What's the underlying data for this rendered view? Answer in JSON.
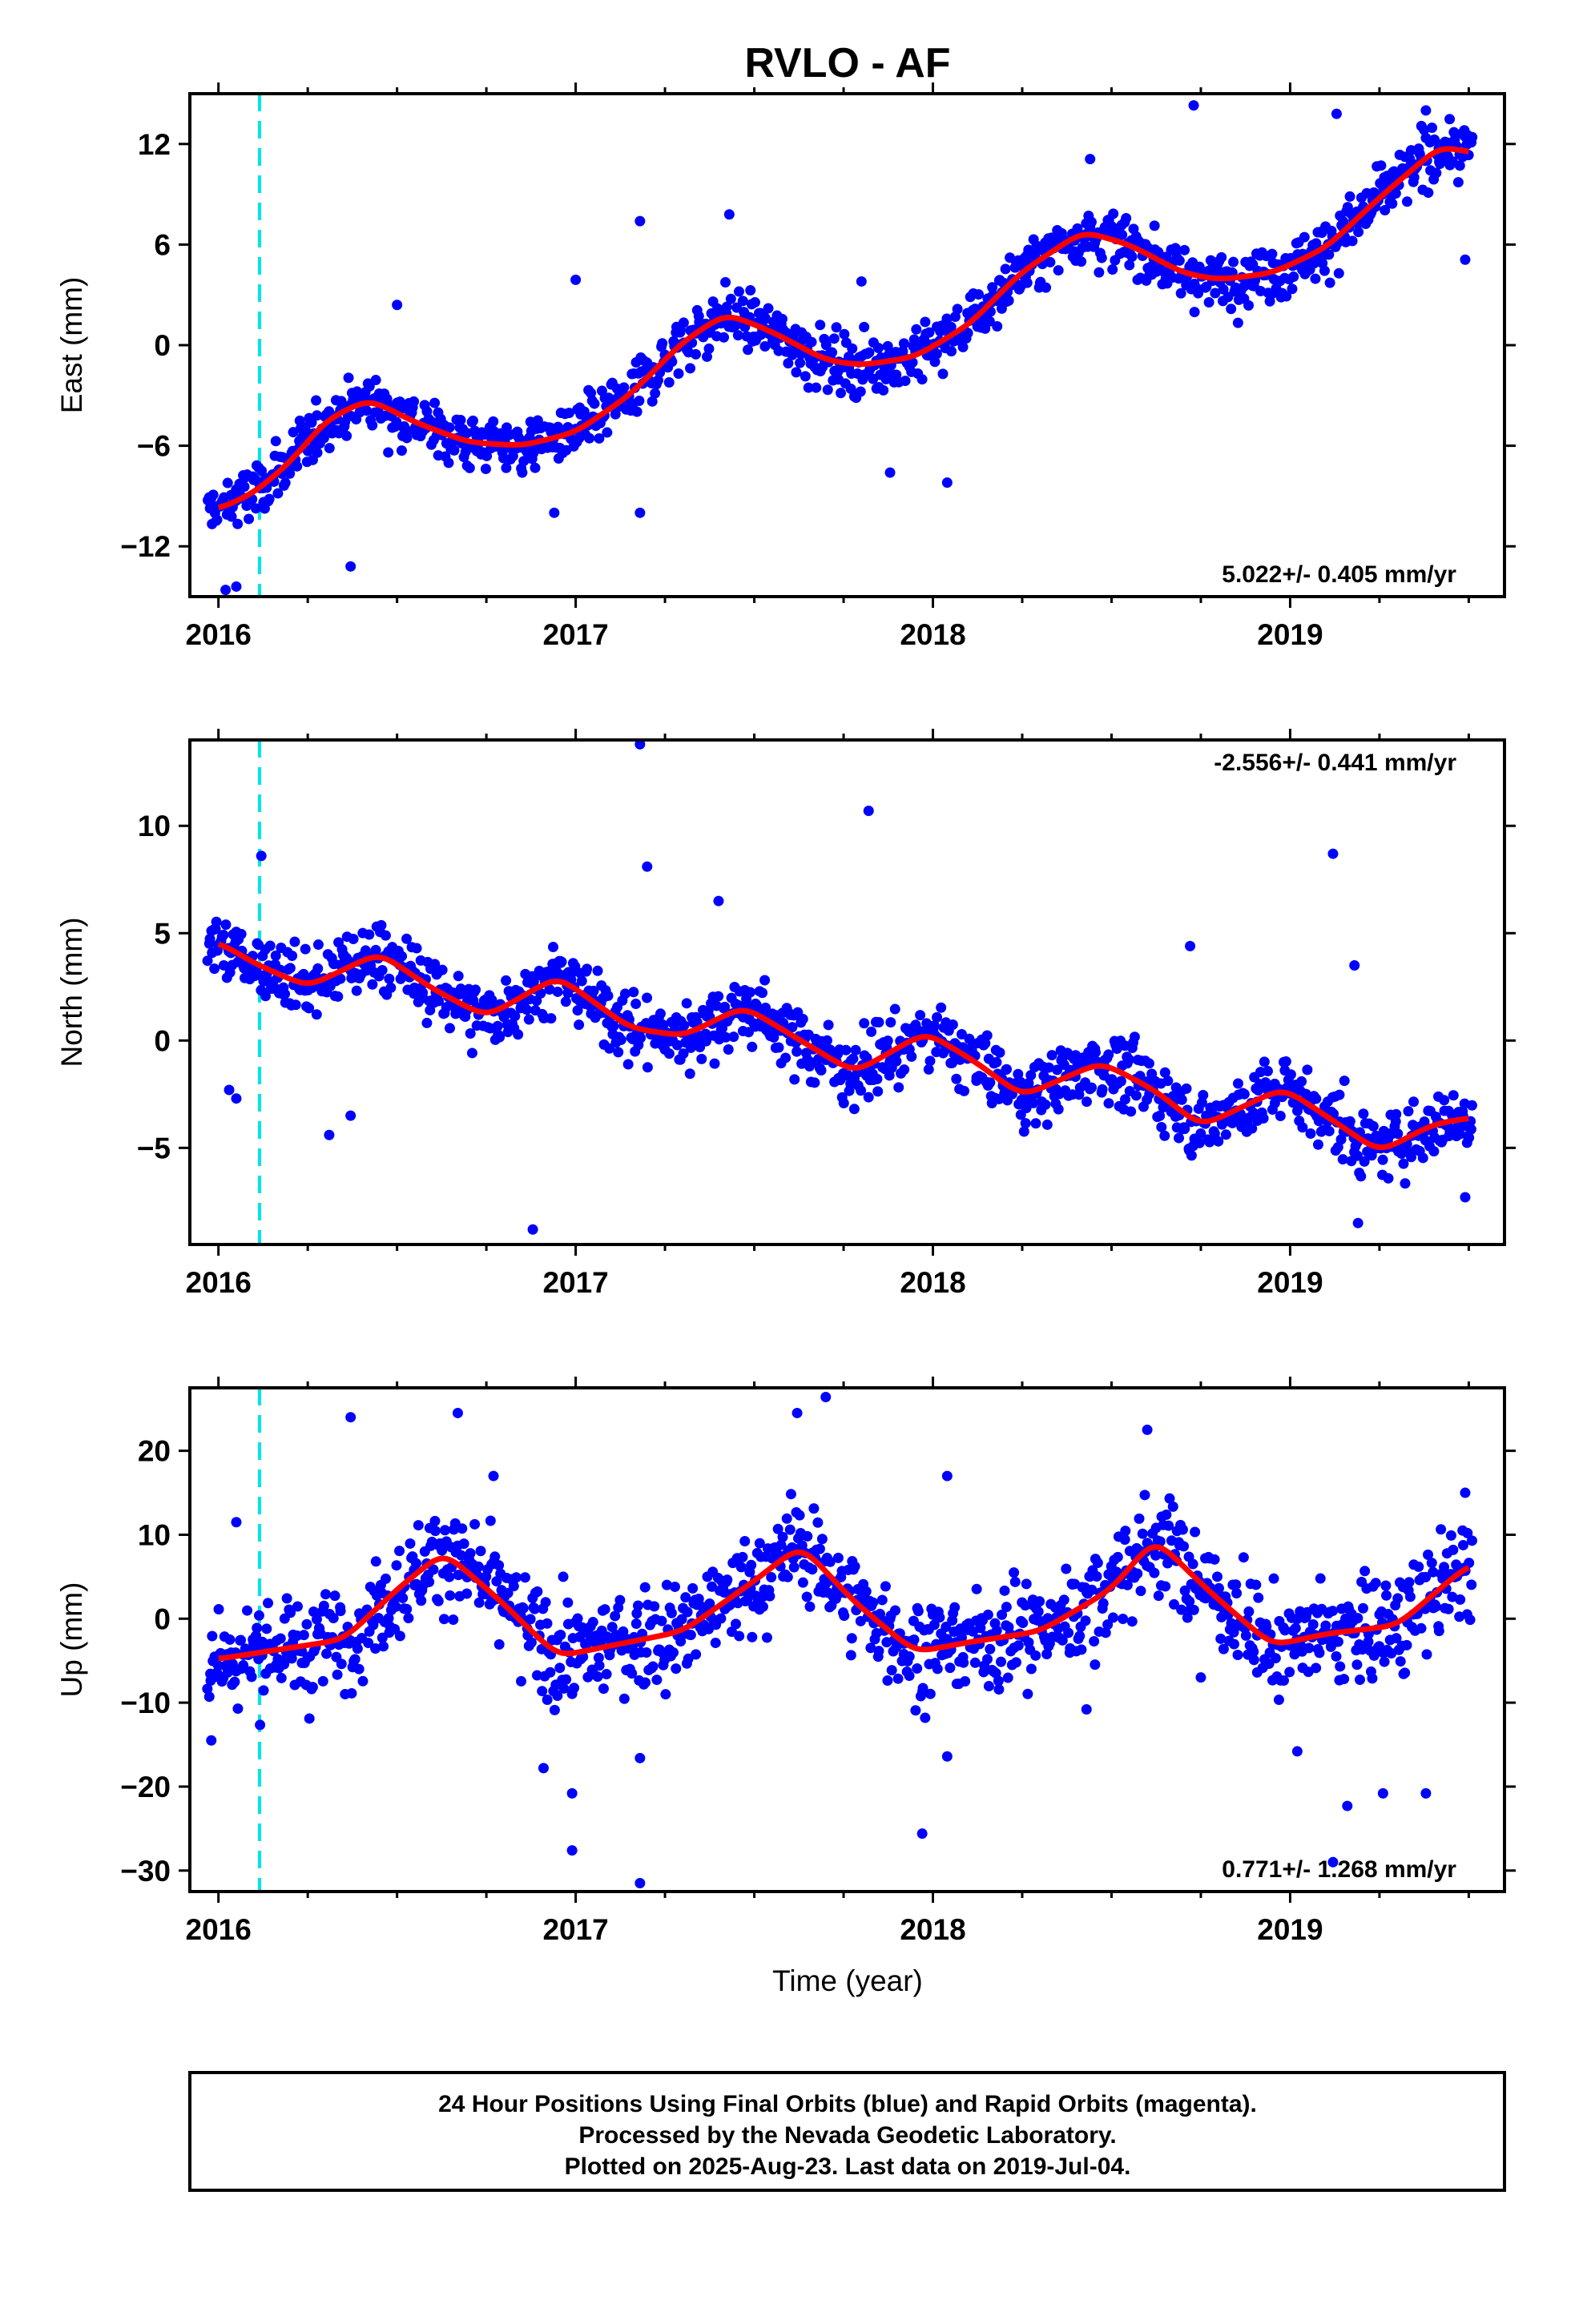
{
  "title": "RVLO - AF",
  "colors": {
    "final_orbits": "#0000ff",
    "model_fit": "#ff0000",
    "event_marker": "#00e5e5",
    "frame": "#000000"
  },
  "xlabel": "Time (year)",
  "xlim": [
    2015.92,
    2019.6
  ],
  "xticks": [
    2016,
    2017,
    2018,
    2019
  ],
  "xtick_labels": [
    "2016",
    "2017",
    "2018",
    "2019"
  ],
  "event_marker_year": 2016.115,
  "footer": {
    "line1": "24 Hour Positions Using Final Orbits (blue) and Rapid Orbits (magenta).",
    "line2": "Processed by the Nevada Geodetic Laboratory.",
    "line3": "Plotted on 2025-Aug-23. Last data on 2019-Jul-04."
  },
  "chart_data": [
    {
      "type": "scatter",
      "component": "east",
      "ylabel": "East (mm)",
      "ylim": [
        -15,
        15
      ],
      "yticks": [
        -12,
        -6,
        0,
        6,
        12
      ],
      "ytick_labels": [
        "−12",
        "−6",
        "0",
        "6",
        "12"
      ],
      "rate_text": "5.022+/- 0.405 mm/yr",
      "rate_placement": "bottom-right",
      "grid": false,
      "fit_curve": {
        "color": "#ff0000",
        "x": [
          2016.0,
          2016.1,
          2016.2,
          2016.3,
          2016.42,
          2016.55,
          2016.7,
          2016.85,
          2017.0,
          2017.15,
          2017.3,
          2017.42,
          2017.55,
          2017.7,
          2017.8,
          2017.95,
          2018.1,
          2018.25,
          2018.42,
          2018.55,
          2018.7,
          2018.8,
          2018.95,
          2019.1,
          2019.25,
          2019.42,
          2019.5
        ],
        "y": [
          -9.8,
          -8.8,
          -7.0,
          -4.5,
          -3.2,
          -4.6,
          -5.8,
          -6.0,
          -5.2,
          -3.0,
          0.2,
          1.9,
          0.8,
          -0.9,
          -1.2,
          -0.7,
          1.2,
          4.4,
          6.8,
          6.0,
          4.3,
          3.9,
          4.3,
          5.8,
          8.8,
          11.9,
          11.5
        ]
      },
      "points": {
        "color": "#0000ff",
        "outliers": [
          [
            2016.02,
            -14.6
          ],
          [
            2016.05,
            -14.4
          ],
          [
            2016.37,
            -13.2
          ],
          [
            2016.5,
            2.4
          ],
          [
            2016.94,
            -10.0
          ],
          [
            2017.0,
            3.9
          ],
          [
            2017.18,
            -10.0
          ],
          [
            2017.18,
            7.4
          ],
          [
            2017.43,
            7.8
          ],
          [
            2017.8,
            3.8
          ],
          [
            2017.88,
            -7.6
          ],
          [
            2018.04,
            -8.2
          ],
          [
            2018.44,
            11.1
          ],
          [
            2018.73,
            14.3
          ],
          [
            2019.13,
            13.8
          ],
          [
            2019.38,
            14.0
          ],
          [
            2019.49,
            5.1
          ]
        ]
      }
    },
    {
      "type": "scatter",
      "component": "north",
      "ylabel": "North (mm)",
      "ylim": [
        -9.5,
        14
      ],
      "yticks": [
        -5,
        0,
        5,
        10
      ],
      "ytick_labels": [
        "−5",
        "0",
        "5",
        "10"
      ],
      "rate_text": "-2.556+/- 0.441 mm/yr",
      "rate_placement": "top-right",
      "grid": false,
      "fit_curve": {
        "color": "#ff0000",
        "x": [
          2016.0,
          2016.1,
          2016.25,
          2016.45,
          2016.6,
          2016.75,
          2016.95,
          2017.15,
          2017.3,
          2017.47,
          2017.62,
          2017.78,
          2017.98,
          2018.12,
          2018.25,
          2018.47,
          2018.62,
          2018.75,
          2018.98,
          2019.1,
          2019.25,
          2019.4,
          2019.5
        ],
        "y": [
          4.6,
          3.6,
          2.5,
          4.1,
          2.4,
          1.1,
          3.0,
          0.6,
          0.2,
          1.6,
          0.1,
          -1.5,
          0.4,
          -1.0,
          -2.6,
          -1.0,
          -2.3,
          -4.0,
          -2.2,
          -3.5,
          -5.2,
          -3.9,
          -3.6
        ]
      },
      "points": {
        "color": "#0000ff",
        "outliers": [
          [
            2016.03,
            -2.3
          ],
          [
            2016.05,
            -2.7
          ],
          [
            2016.31,
            -4.4
          ],
          [
            2016.37,
            -3.5
          ],
          [
            2016.12,
            8.6
          ],
          [
            2016.88,
            -8.8
          ],
          [
            2017.18,
            13.8
          ],
          [
            2017.2,
            8.1
          ],
          [
            2017.4,
            6.5
          ],
          [
            2017.82,
            10.7
          ],
          [
            2018.72,
            4.4
          ],
          [
            2019.12,
            8.7
          ],
          [
            2019.18,
            3.5
          ],
          [
            2019.19,
            -8.5
          ],
          [
            2019.49,
            -7.3
          ]
        ]
      }
    },
    {
      "type": "scatter",
      "component": "up",
      "ylabel": "Up (mm)",
      "ylim": [
        -32.5,
        27.5
      ],
      "yticks": [
        -30,
        -20,
        -10,
        0,
        10,
        20
      ],
      "ytick_labels": [
        "−30",
        "−20",
        "−10",
        "0",
        "10",
        "20"
      ],
      "rate_text": "0.771+/- 1.268 mm/yr",
      "rate_placement": "bottom-right",
      "grid": false,
      "fit_curve": {
        "color": "#ff0000",
        "x": [
          2016.0,
          2016.15,
          2016.35,
          2016.5,
          2016.63,
          2016.78,
          2016.95,
          2017.1,
          2017.3,
          2017.5,
          2017.63,
          2017.78,
          2017.95,
          2018.1,
          2018.3,
          2018.5,
          2018.62,
          2018.78,
          2018.95,
          2019.1,
          2019.3,
          2019.5
        ],
        "y": [
          -4.8,
          -3.8,
          -2.5,
          3.5,
          8.0,
          2.5,
          -4.5,
          -3.2,
          -1.5,
          4.5,
          8.8,
          2.0,
          -4.0,
          -2.8,
          -1.5,
          3.5,
          9.6,
          3.0,
          -3.2,
          -1.8,
          -0.8,
          6.5
        ]
      },
      "points": {
        "color": "#0000ff",
        "outliers": [
          [
            2015.98,
            -14.5
          ],
          [
            2016.05,
            11.5
          ],
          [
            2016.37,
            24.0
          ],
          [
            2016.67,
            24.5
          ],
          [
            2016.77,
            17.0
          ],
          [
            2016.91,
            -17.8
          ],
          [
            2016.99,
            -20.8
          ],
          [
            2016.99,
            -27.6
          ],
          [
            2017.18,
            -16.6
          ],
          [
            2017.18,
            -31.5
          ],
          [
            2017.62,
            24.5
          ],
          [
            2017.7,
            26.4
          ],
          [
            2017.97,
            -25.6
          ],
          [
            2018.04,
            -16.4
          ],
          [
            2018.04,
            17.0
          ],
          [
            2018.43,
            -10.8
          ],
          [
            2018.6,
            22.5
          ],
          [
            2018.75,
            -7.0
          ],
          [
            2019.02,
            -15.8
          ],
          [
            2019.12,
            -29.0
          ],
          [
            2019.16,
            -22.3
          ],
          [
            2019.26,
            -20.8
          ],
          [
            2019.38,
            -20.8
          ],
          [
            2019.49,
            15.0
          ]
        ]
      }
    }
  ]
}
